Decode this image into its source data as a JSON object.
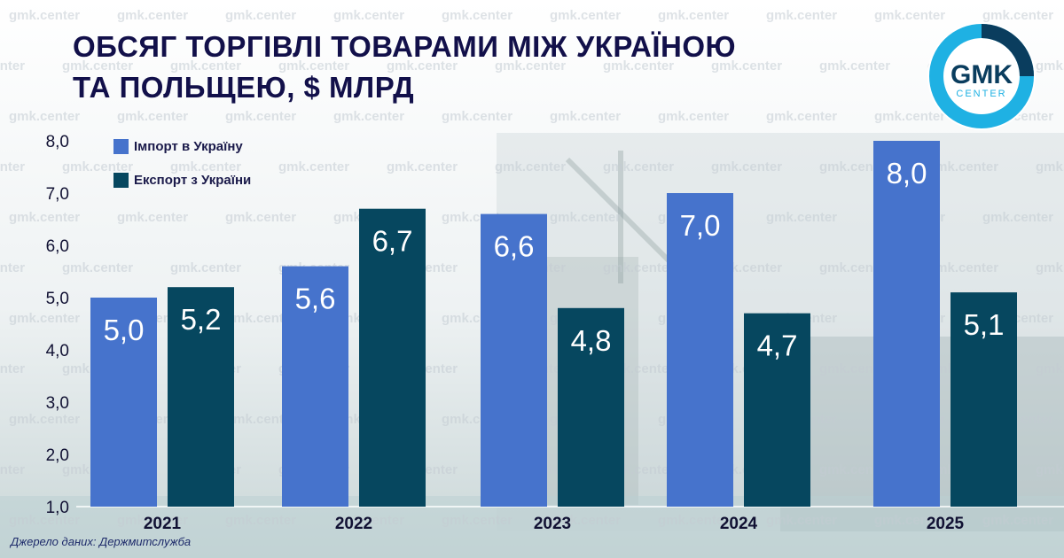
{
  "title": {
    "line1": "ОБСЯГ ТОРГІВЛІ ТОВАРАМИ МІЖ УКРАЇНОЮ",
    "line2": "ТА ПОЛЬЩЕЮ, $ МЛРД"
  },
  "logo": {
    "word": "GMK",
    "sub": "CENTER"
  },
  "watermark": {
    "text": "gmk.center"
  },
  "source": "Джерело даних: Держмитслужба",
  "colors": {
    "import": "#4673cc",
    "export": "#06475f",
    "title": "#12104a",
    "logo_ring": "#1fb1e3",
    "axis_text": "#111133"
  },
  "chart_data": {
    "type": "bar",
    "title": "ОБСЯГ ТОРГІВЛІ ТОВАРАМИ МІЖ УКРАЇНОЮ ТА ПОЛЬЩЕЮ, $ МЛРД",
    "categories": [
      "2021",
      "2022",
      "2023",
      "2024",
      "2025"
    ],
    "series": [
      {
        "name": "Імпорт в Україну",
        "values": [
          5.0,
          5.6,
          6.6,
          7.0,
          8.0
        ],
        "labels": [
          "5,0",
          "5,6",
          "6,6",
          "7,0",
          "8,0"
        ],
        "color": "#4673cc"
      },
      {
        "name": "Експорт з України",
        "values": [
          5.2,
          6.7,
          4.8,
          4.7,
          5.1
        ],
        "labels": [
          "5,2",
          "6,7",
          "4,8",
          "4,7",
          "5,1"
        ],
        "color": "#06475f"
      }
    ],
    "yticks": [
      "1,0",
      "2,0",
      "3,0",
      "4,0",
      "5,0",
      "6,0",
      "7,0",
      "8,0"
    ],
    "ylim": [
      1,
      8
    ],
    "xlabel": "",
    "ylabel": "",
    "grid": false,
    "legend": "top-left"
  }
}
